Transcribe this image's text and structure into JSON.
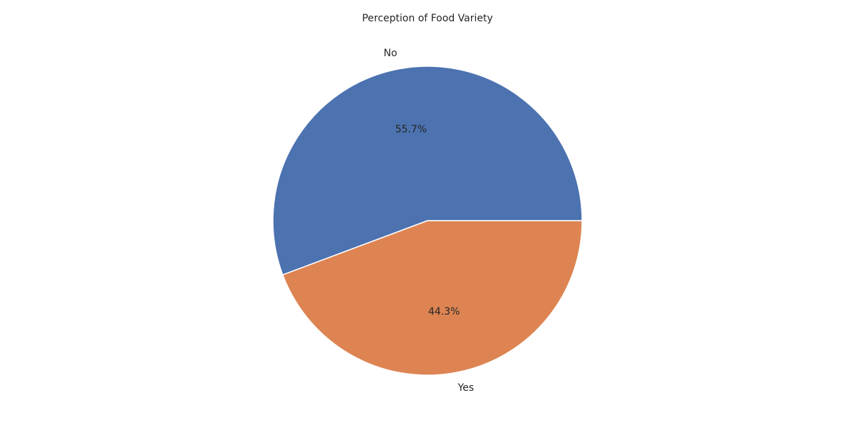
{
  "chart_data": {
    "type": "pie",
    "title": "Perception of Food Variety",
    "categories": [
      "No",
      "Yes"
    ],
    "values": [
      55.7,
      44.3
    ],
    "value_labels": [
      "55.7%",
      "44.3%"
    ],
    "colors": [
      "#4c72b0",
      "#dd8452"
    ],
    "start_angle_deg": 0,
    "direction": "counterclockwise",
    "slice_edge_color": "#ffffff"
  }
}
